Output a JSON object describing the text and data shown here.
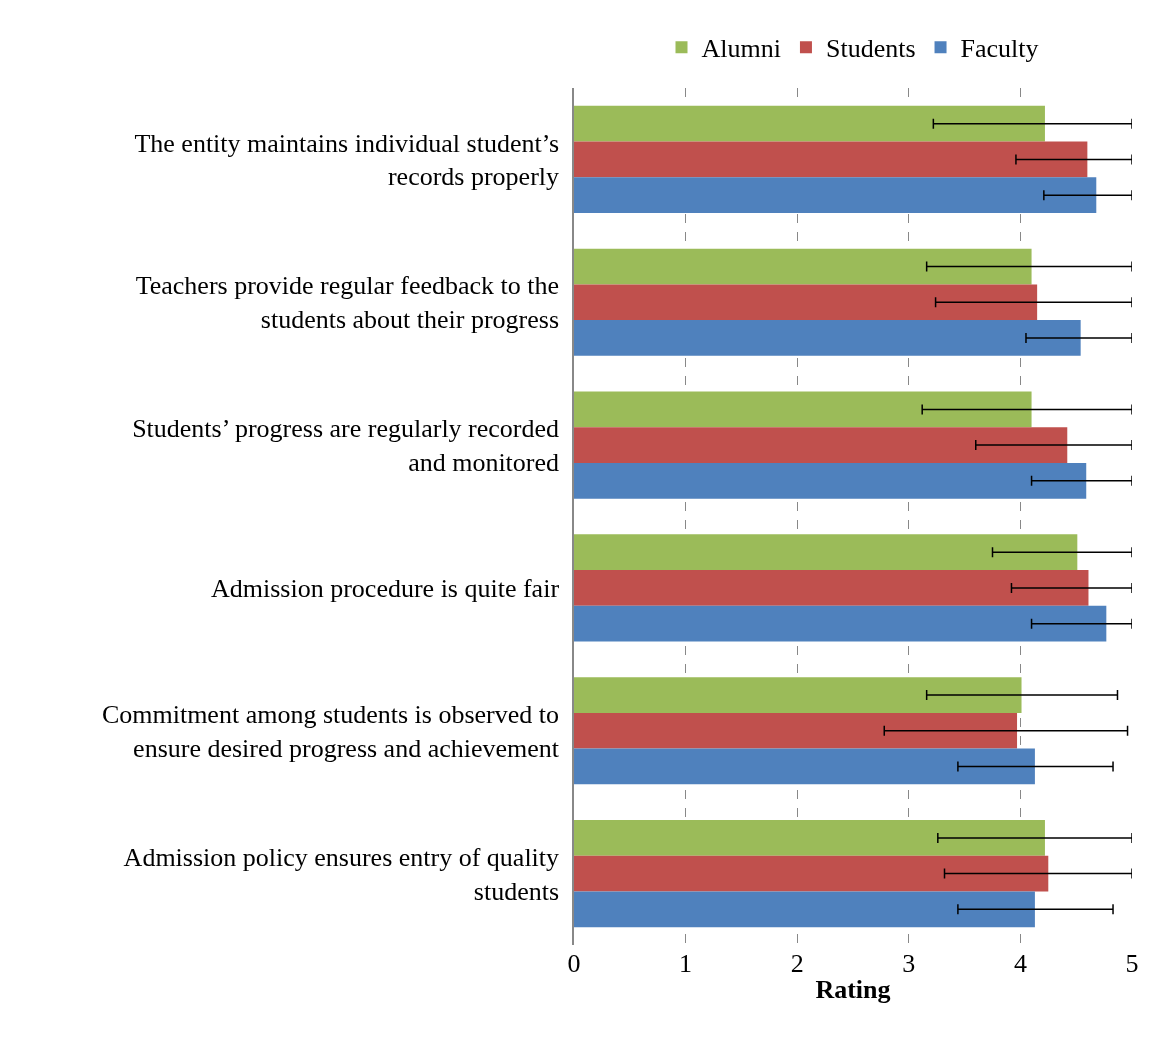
{
  "chart_data": {
    "type": "bar",
    "orientation": "horizontal",
    "xlabel": "Rating",
    "categories": [
      "The entity maintains individual student’s records properly",
      "Teachers provide regular feedback to the students about their progress",
      "Students’ progress are regularly recorded and monitored",
      "Admission procedure is quite fair",
      "Commitment among students is observed to ensure desired progress and achievement",
      "Admission policy ensures entry of quality students"
    ],
    "series": [
      {
        "name": "Alumni",
        "color": "#9bbb59",
        "values": [
          4.22,
          4.1,
          4.1,
          4.51,
          4.01,
          4.22
        ],
        "errors": [
          [
            3.22,
            5
          ],
          [
            3.16,
            5
          ],
          [
            3.12,
            5
          ],
          [
            3.75,
            5
          ],
          [
            3.16,
            4.87
          ],
          [
            3.26,
            5
          ]
        ]
      },
      {
        "name": "Students",
        "color": "#c0504d",
        "values": [
          4.6,
          4.15,
          4.42,
          4.61,
          3.97,
          4.25
        ],
        "errors": [
          [
            3.96,
            5
          ],
          [
            3.24,
            5
          ],
          [
            3.6,
            5
          ],
          [
            3.92,
            5
          ],
          [
            2.78,
            4.96
          ],
          [
            3.32,
            5
          ]
        ]
      },
      {
        "name": "Faculty",
        "color": "#4f81bd",
        "values": [
          4.68,
          4.54,
          4.59,
          4.77,
          4.13,
          4.13
        ],
        "errors": [
          [
            4.21,
            5
          ],
          [
            4.05,
            5
          ],
          [
            4.1,
            5
          ],
          [
            4.1,
            5
          ],
          [
            3.44,
            4.83
          ],
          [
            3.44,
            4.83
          ]
        ]
      }
    ],
    "xlim": [
      0,
      5
    ],
    "xticks": [
      0,
      1,
      2,
      3,
      4,
      5
    ],
    "grid": "x",
    "legend": "top"
  }
}
